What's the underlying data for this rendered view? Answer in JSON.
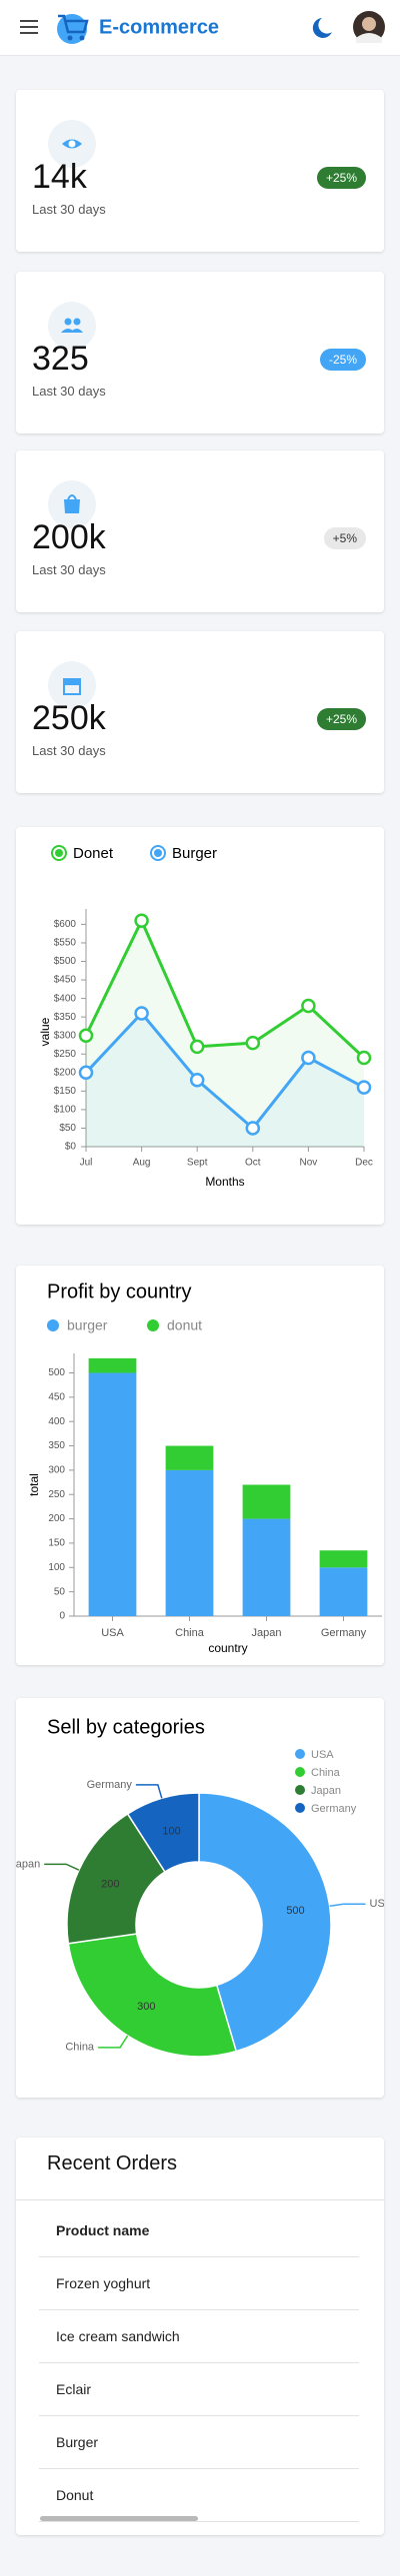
{
  "header": {
    "title": "E-commerce"
  },
  "stats": [
    {
      "value": "14k",
      "caption": "Last 30 days",
      "badge": "+25%"
    },
    {
      "value": "325",
      "caption": "Last 30 days",
      "badge": "-25%"
    },
    {
      "value": "200k",
      "caption": "Last 30 days",
      "badge": "+5%"
    },
    {
      "value": "250k",
      "caption": "Last 30 days",
      "badge": "+25%"
    }
  ],
  "chart_data": [
    {
      "type": "line",
      "categories": [
        "Jul",
        "Aug",
        "Sept",
        "Oct",
        "Nov",
        "Dec"
      ],
      "series": [
        {
          "name": "Donet",
          "color": "#32cd32",
          "values": [
            300,
            610,
            270,
            280,
            380,
            240
          ]
        },
        {
          "name": "Burger",
          "color": "#42a5f5",
          "values": [
            200,
            360,
            180,
            50,
            240,
            160
          ]
        }
      ],
      "ylim": [
        0,
        620
      ],
      "yticks": [
        {
          "value": 0,
          "label": "$0"
        },
        {
          "value": 50,
          "label": "$50"
        },
        {
          "value": 100,
          "label": "$100"
        },
        {
          "value": 150,
          "label": "$150"
        },
        {
          "value": 200,
          "label": "$200"
        },
        {
          "value": 250,
          "label": "$250"
        },
        {
          "value": 300,
          "label": "$300"
        },
        {
          "value": 350,
          "label": "$350"
        },
        {
          "value": 400,
          "label": "$400"
        },
        {
          "value": 450,
          "label": "$450"
        },
        {
          "value": 500,
          "label": "$500"
        },
        {
          "value": 550,
          "label": "$550"
        },
        {
          "value": 600,
          "label": "$600"
        }
      ],
      "ylabel": "value",
      "xlabel": "Months"
    },
    {
      "type": "bar",
      "stacked": true,
      "title": "Profit by country",
      "categories": [
        "USA",
        "China",
        "Japan",
        "Germany"
      ],
      "series": [
        {
          "name": "burger",
          "color": "#42a5f5",
          "values": [
            500,
            300,
            200,
            100
          ]
        },
        {
          "name": "donut",
          "color": "#32cd32",
          "values": [
            30,
            50,
            70,
            35
          ]
        }
      ],
      "ylim": [
        0,
        540
      ],
      "yticks": [
        0,
        50,
        100,
        150,
        200,
        250,
        300,
        350,
        400,
        450,
        500
      ],
      "xlabel": "country",
      "ylabel": "total"
    },
    {
      "type": "pie",
      "title": "Sell by categories",
      "categories": [
        "USA",
        "China",
        "Japan",
        "Germany"
      ],
      "values": [
        500,
        300,
        200,
        100
      ],
      "colors": [
        "#42a5f5",
        "#32cd32",
        "#2e7d32",
        "#1565c0"
      ],
      "legend": "top-right"
    }
  ],
  "orders": {
    "title": "Recent Orders",
    "column": "Product name",
    "rows": [
      "Frozen yoghurt",
      "Ice cream sandwich",
      "Eclair",
      "Burger",
      "Donut"
    ]
  }
}
